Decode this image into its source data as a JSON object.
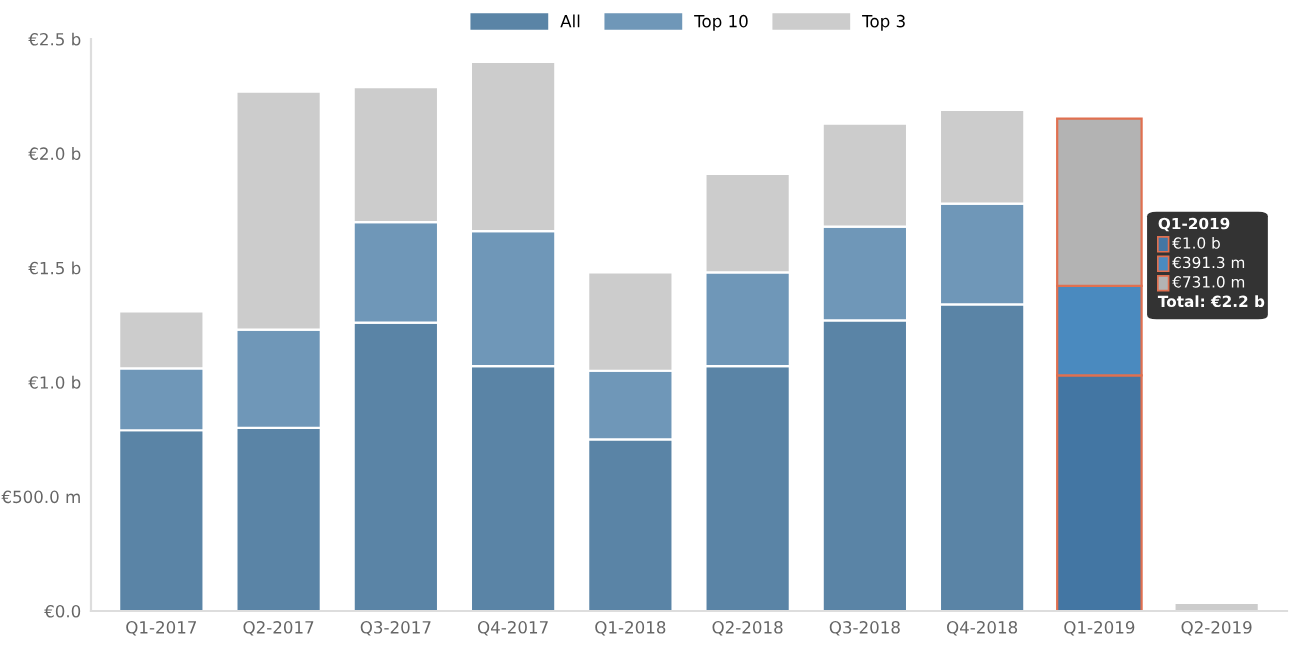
{
  "chart_data": {
    "type": "bar",
    "stacked": true,
    "categories": [
      "Q1-2017",
      "Q2-2017",
      "Q3-2017",
      "Q4-2017",
      "Q1-2018",
      "Q2-2018",
      "Q3-2018",
      "Q4-2018",
      "Q1-2019",
      "Q2-2019"
    ],
    "series": [
      {
        "name": "All",
        "color": "#5a84a6",
        "colors": [
          "#5a84a6",
          "#5a84a6",
          "#5a84a6",
          "#5a84a6",
          "#5a84a6",
          "#5a84a6",
          "#5a84a6",
          "#5a84a6",
          "#4376a3",
          "#5a84a6"
        ],
        "values": [
          790000000,
          800000000,
          1260000000,
          1070000000,
          750000000,
          1070000000,
          1270000000,
          1340000000,
          1030000000,
          0
        ]
      },
      {
        "name": "Top 10",
        "color": "#6f97b8",
        "colors": [
          "#6f97b8",
          "#6f97b8",
          "#6f97b8",
          "#6f97b8",
          "#6f97b8",
          "#6f97b8",
          "#6f97b8",
          "#6f97b8",
          "#4a8abf",
          "#6f97b8"
        ],
        "values": [
          270000000,
          430000000,
          440000000,
          590000000,
          300000000,
          410000000,
          410000000,
          440000000,
          391300000,
          0
        ]
      },
      {
        "name": "Top 3",
        "color": "#cccccc",
        "colors": [
          "#cccccc",
          "#cccccc",
          "#cccccc",
          "#cccccc",
          "#cccccc",
          "#cccccc",
          "#cccccc",
          "#cccccc",
          "#b3b3b3",
          "#cccccc"
        ],
        "values": [
          250000000,
          1040000000,
          590000000,
          740000000,
          430000000,
          430000000,
          450000000,
          410000000,
          731000000,
          35000000
        ]
      }
    ],
    "ylim": [
      0,
      2500000000
    ],
    "yticks": [
      {
        "value": 0,
        "label": "€0.0"
      },
      {
        "value": 500000000,
        "label": "€500.0 m"
      },
      {
        "value": 1000000000,
        "label": "€1.0 b"
      },
      {
        "value": 1500000000,
        "label": "€1.5 b"
      },
      {
        "value": 2000000000,
        "label": "€2.0 b"
      },
      {
        "value": 2500000000,
        "label": "€2.5 b"
      }
    ],
    "grid": false,
    "legend": "top",
    "annotations": [
      "Q1-2019",
      "€1.0 b",
      "€391.3 m",
      "€731.0 m",
      "Total: €2.2 b"
    ]
  }
}
